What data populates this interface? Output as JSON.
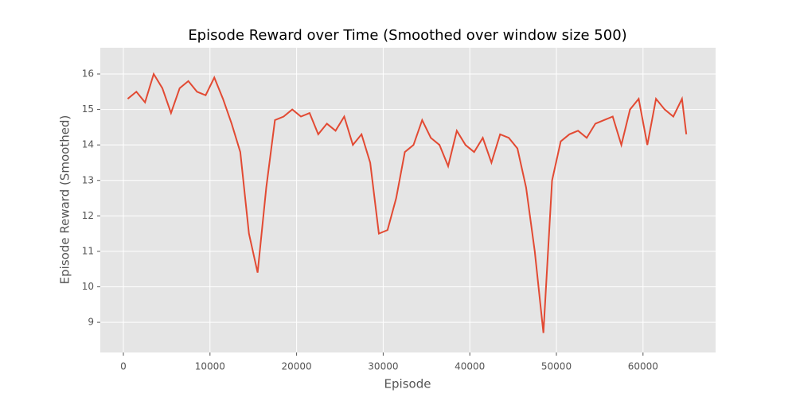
{
  "chart_data": {
    "type": "line",
    "title": "Episode Reward over Time (Smoothed over window size 500)",
    "x_label": "Episode",
    "y_label": "Episode Reward (Smoothed)",
    "x": [
      500,
      1500,
      2500,
      3500,
      4500,
      5500,
      6500,
      7500,
      8500,
      9500,
      10500,
      11500,
      12500,
      13500,
      14500,
      15500,
      16500,
      17500,
      18500,
      19500,
      20500,
      21500,
      22500,
      23500,
      24500,
      25500,
      26500,
      27500,
      28500,
      29500,
      30500,
      31500,
      32500,
      33500,
      34500,
      35500,
      36500,
      37500,
      38500,
      39500,
      40500,
      41500,
      42500,
      43500,
      44500,
      45500,
      46500,
      47500,
      48500,
      49500,
      50500,
      51500,
      52500,
      53500,
      54500,
      55500,
      56500,
      57500,
      58500,
      59500,
      60500,
      61500,
      62500,
      63500,
      64500,
      65000
    ],
    "series": [
      {
        "name": "Episode Reward (Smoothed)",
        "color": "#e24a33",
        "values": [
          15.3,
          15.5,
          15.2,
          16.0,
          15.6,
          14.9,
          15.6,
          15.8,
          15.5,
          15.4,
          15.9,
          15.3,
          14.6,
          13.8,
          11.5,
          10.4,
          12.8,
          14.7,
          14.8,
          15.0,
          14.8,
          14.9,
          14.3,
          14.6,
          14.4,
          14.8,
          14.0,
          14.3,
          13.5,
          11.5,
          11.6,
          12.5,
          13.8,
          14.0,
          14.7,
          14.2,
          14.0,
          13.4,
          14.4,
          14.0,
          13.8,
          14.2,
          13.5,
          14.3,
          14.2,
          13.9,
          12.8,
          11.0,
          8.7,
          13.0,
          14.1,
          14.3,
          14.4,
          14.2,
          14.6,
          14.7,
          14.8,
          14.0,
          15.0,
          15.3,
          14.0,
          15.3,
          15.0,
          14.8,
          15.3,
          14.3
        ]
      }
    ],
    "xlim": [
      -2665,
      68382
    ],
    "ylim": [
      8.15,
      16.74
    ],
    "xticks": [
      0,
      10000,
      20000,
      30000,
      40000,
      50000,
      60000
    ],
    "yticks": [
      9,
      10,
      11,
      12,
      13,
      14,
      15,
      16
    ],
    "grid": true
  }
}
